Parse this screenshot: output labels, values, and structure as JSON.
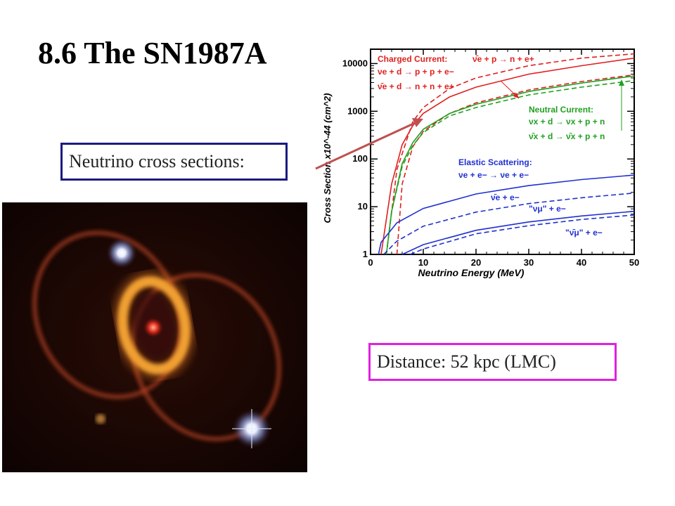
{
  "slide": {
    "title": "8.6 The SN1987A",
    "cross_sections_label": "Neutrino cross sections:",
    "distance_label": "Distance: 52 kpc (LMC)"
  },
  "image": {
    "subject": "SN1987A supernova remnant with inner ring and two outer rings"
  },
  "chart_data": {
    "type": "line",
    "xlabel": "Neutrino Energy  (MeV)",
    "ylabel": "Cross Section  x10^-44  (cm^2)",
    "xlim": [
      0,
      50
    ],
    "ylim": [
      1,
      20000
    ],
    "yscale": "log",
    "x_ticks": [
      "0",
      "10",
      "20",
      "30",
      "40",
      "50"
    ],
    "y_ticks": [
      "1",
      "10",
      "100",
      "1000",
      "10000"
    ],
    "annotations": {
      "charged_current": {
        "heading": "Charged Current:",
        "lines": [
          "ν̄e + p → n + e+",
          "νe + d → p + p + e−",
          "ν̄e + d → n + n + e+"
        ]
      },
      "neutral_current": {
        "heading": "Neutral Current:",
        "lines": [
          "νx + d → νx + p + n",
          "ν̄x + d → ν̄x + p + n"
        ]
      },
      "elastic_scattering": {
        "heading": "Elastic Scattering:",
        "lines": [
          "νe + e− → νe + e−",
          "ν̄e + e−",
          "\"νμ\" + e−",
          "\"ν̄μ\" + e−"
        ]
      }
    },
    "colors": {
      "charged": "#e02020",
      "neutral": "#20a020",
      "elastic": "#2030d0",
      "arrow": "#c05050"
    },
    "series": [
      {
        "group": "charged",
        "style": "dashed",
        "x": [
          3,
          5,
          8,
          10,
          15,
          20,
          30,
          40,
          50
        ],
        "y": [
          1,
          60,
          600,
          1200,
          3000,
          5000,
          9000,
          13000,
          16000
        ]
      },
      {
        "group": "charged",
        "style": "solid",
        "x": [
          2,
          4,
          6,
          8,
          10,
          15,
          20,
          30,
          40,
          50
        ],
        "y": [
          1,
          30,
          200,
          500,
          900,
          2000,
          3200,
          6000,
          9000,
          13000
        ]
      },
      {
        "group": "charged",
        "style": "dashed",
        "x": [
          5,
          6,
          8,
          10,
          15,
          20,
          30,
          40,
          50
        ],
        "y": [
          1,
          30,
          180,
          380,
          900,
          1500,
          2800,
          4200,
          5800
        ]
      },
      {
        "group": "neutral",
        "style": "solid",
        "x": [
          3,
          4,
          6,
          8,
          10,
          15,
          20,
          30,
          40,
          50
        ],
        "y": [
          1,
          8,
          80,
          220,
          420,
          900,
          1400,
          2600,
          3900,
          5500
        ]
      },
      {
        "group": "neutral",
        "style": "dashed",
        "x": [
          3,
          4,
          6,
          8,
          10,
          15,
          20,
          30,
          40,
          50
        ],
        "y": [
          1,
          8,
          70,
          190,
          360,
          800,
          1200,
          2200,
          3200,
          4400
        ]
      },
      {
        "group": "elastic",
        "style": "solid",
        "x": [
          1.5,
          2,
          5,
          10,
          20,
          30,
          40,
          50
        ],
        "y": [
          1,
          1.8,
          4.6,
          9.2,
          18.5,
          27.7,
          37,
          46
        ]
      },
      {
        "group": "elastic",
        "style": "dashed",
        "x": [
          2.5,
          5,
          10,
          20,
          30,
          40,
          50
        ],
        "y": [
          1,
          1.9,
          3.9,
          7.7,
          11.6,
          15.4,
          19.3
        ]
      },
      {
        "group": "elastic",
        "style": "solid",
        "x": [
          6,
          10,
          20,
          30,
          40,
          50
        ],
        "y": [
          1,
          1.6,
          3.2,
          4.8,
          6.4,
          8
        ]
      },
      {
        "group": "elastic",
        "style": "dashed",
        "x": [
          7.5,
          10,
          20,
          30,
          40,
          50
        ],
        "y": [
          1,
          1.3,
          2.7,
          4,
          5.4,
          6.7
        ]
      }
    ]
  }
}
